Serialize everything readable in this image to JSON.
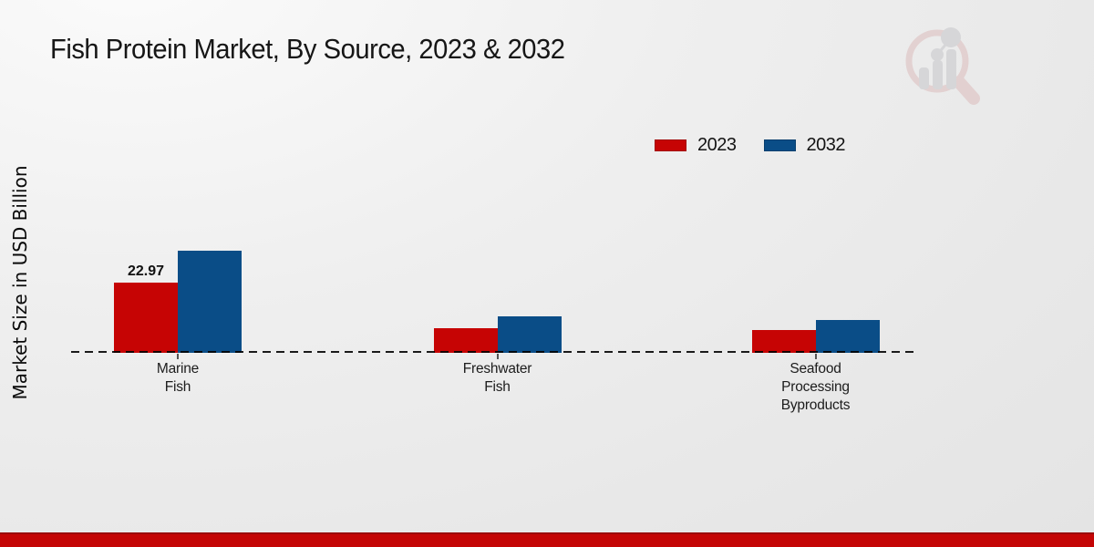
{
  "page_title": "Fish Protein Market, By Source, 2023 & 2032",
  "chart_data": {
    "type": "bar",
    "title": "Fish Protein Market, By Source, 2023 & 2032",
    "ylabel": "Market Size in USD Billion",
    "xlabel": "",
    "categories": [
      "Marine Fish",
      "Freshwater Fish",
      "Seafood Processing Byproducts"
    ],
    "category_label_lines": [
      [
        "Marine",
        "Fish"
      ],
      [
        "Freshwater",
        "Fish"
      ],
      [
        "Seafood",
        "Processing",
        "Byproducts"
      ]
    ],
    "series": [
      {
        "name": "2023",
        "color": "#c60404",
        "values": [
          22.97,
          8.05,
          7.46
        ]
      },
      {
        "name": "2032",
        "color": "#0a4d87",
        "values": [
          33.41,
          11.93,
          10.65
        ]
      }
    ],
    "value_labels": [
      {
        "series_index": 0,
        "category_index": 0,
        "text": "22.97"
      }
    ],
    "ylim": [
      0,
      35
    ],
    "grid": false,
    "baseline_style": "dashed",
    "legend_position": "top-right"
  },
  "legend": {
    "items": [
      {
        "label": "2023",
        "color": "#c60404"
      },
      {
        "label": "2032",
        "color": "#0a4d87"
      }
    ]
  },
  "logo": {
    "name": "market-research-future-watermark"
  },
  "footer": {
    "band_color": "#c40505",
    "band_border_color": "#9a0c0c"
  }
}
